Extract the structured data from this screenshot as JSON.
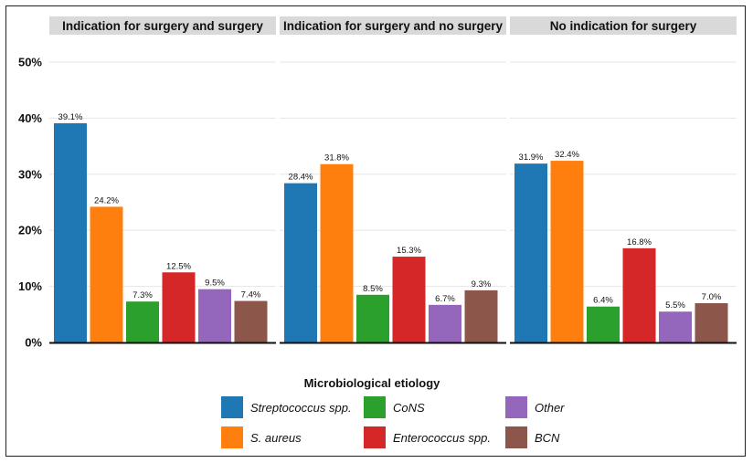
{
  "chart_data": {
    "type": "bar",
    "ylim": [
      0,
      50
    ],
    "yticks": [
      "0%",
      "10%",
      "20%",
      "30%",
      "40%",
      "50%"
    ],
    "ytick_values": [
      0,
      10,
      20,
      30,
      40,
      50
    ],
    "grid": true,
    "legend_title": "Microbiological etiology",
    "legend_position": "bottom",
    "categories": [
      "Streptococcus spp.",
      "S. aureus",
      "CoNS",
      "Enterococcus spp.",
      "Other",
      "BCN"
    ],
    "colors": [
      "#1f77b4",
      "#ff7f0e",
      "#2ca02c",
      "#d62728",
      "#9467bd",
      "#8c564b"
    ],
    "panels": [
      {
        "title": "Indication for surgery and surgery",
        "values": [
          39.1,
          24.2,
          7.3,
          12.5,
          9.5,
          7.4
        ],
        "labels": [
          "39.1%",
          "24.2%",
          "7.3%",
          "12.5%",
          "9.5%",
          "7.4%"
        ]
      },
      {
        "title": "Indication for surgery and no surgery",
        "values": [
          28.4,
          31.8,
          8.5,
          15.3,
          6.7,
          9.3
        ],
        "labels": [
          "28.4%",
          "31.8%",
          "8.5%",
          "15.3%",
          "6.7%",
          "9.3%"
        ]
      },
      {
        "title": "No indication for surgery",
        "values": [
          31.9,
          32.4,
          6.4,
          16.8,
          5.5,
          7.0
        ],
        "labels": [
          "31.9%",
          "32.4%",
          "6.4%",
          "16.8%",
          "5.5%",
          "7.0%"
        ]
      }
    ]
  }
}
